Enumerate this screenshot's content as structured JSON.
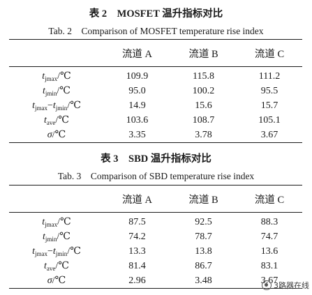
{
  "table2": {
    "caption_cn": "表 2　MOSFET 温升指标对比",
    "caption_en": "Tab. 2　Comparison of MOSFET temperature rise index",
    "columns": [
      "流道 A",
      "流道 B",
      "流道 C"
    ],
    "rows": [
      {
        "values": [
          "109.9",
          "115.8",
          "111.2"
        ]
      },
      {
        "values": [
          "95.0",
          "100.2",
          "95.5"
        ]
      },
      {
        "values": [
          "14.9",
          "15.6",
          "15.7"
        ]
      },
      {
        "values": [
          "103.6",
          "108.7",
          "105.1"
        ]
      },
      {
        "values": [
          "3.35",
          "3.78",
          "3.67"
        ]
      }
    ]
  },
  "table3": {
    "caption_cn": "表 3　SBD 温升指标对比",
    "caption_en": "Tab. 3　Comparison of SBD temperature rise index",
    "columns": [
      "流道 A",
      "流道 B",
      "流道 C"
    ],
    "rows": [
      {
        "values": [
          "87.5",
          "92.5",
          "88.3"
        ]
      },
      {
        "values": [
          "74.2",
          "78.7",
          "74.7"
        ]
      },
      {
        "values": [
          "13.3",
          "13.8",
          "13.6"
        ]
      },
      {
        "values": [
          "81.4",
          "86.7",
          "83.1"
        ]
      },
      {
        "values": [
          "2.96",
          "3.48",
          "3.67"
        ]
      }
    ]
  },
  "labels": {
    "t": "t",
    "sigma": "σ",
    "jmax": "jmax",
    "jmin": "jmin",
    "ave": "ave",
    "unit": "/℃",
    "minus": "−"
  },
  "watermark": {
    "text": "3路器在线",
    "icon": "wechat-icon"
  }
}
